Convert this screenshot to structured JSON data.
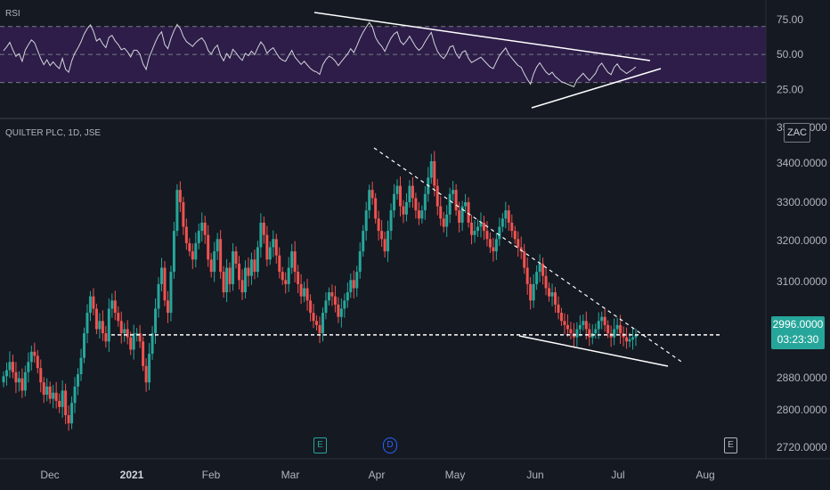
{
  "ticker_label": "QUILTER PLC, 1D, JSE",
  "currency": "ZAC",
  "last_price": "2996.0000",
  "countdown": "03:23:30",
  "rsi_panel": {
    "label": "RSI",
    "levels": [
      75.0,
      50.0,
      25.0
    ],
    "axis_labels": [
      "75.00",
      "50.00",
      "25.00"
    ],
    "band_upper": 70,
    "band_lower": 30
  },
  "price_axis_labels": [
    "3500.0000",
    "3400.0000",
    "3300.0000",
    "3200.0000",
    "3100.0000",
    "2880.0000",
    "2800.0000",
    "2720.0000"
  ],
  "time_axis_labels": [
    "Dec",
    "2021",
    "Feb",
    "Mar",
    "Apr",
    "May",
    "Jun",
    "Jul",
    "Aug"
  ],
  "event_markers": [
    "E",
    "D",
    "E"
  ],
  "colors": {
    "up": "#26a69a",
    "down": "#ef5350",
    "rsi_band": "#2d1d48",
    "background": "#151922"
  },
  "chart_data": {
    "type": "candlestick",
    "x_range": [
      "2020-11-09",
      "2021-08-20"
    ],
    "y_range": [
      2700,
      3520
    ],
    "support_level": 2996,
    "close": [
      2895,
      2910,
      2930,
      2905,
      2880,
      2890,
      2860,
      2905,
      2930,
      2955,
      2945,
      2915,
      2880,
      2850,
      2870,
      2840,
      2855,
      2835,
      2820,
      2860,
      2800,
      2780,
      2830,
      2870,
      2900,
      2940,
      3000,
      3050,
      3090,
      3060,
      3010,
      3030,
      3000,
      2980,
      3060,
      3080,
      3050,
      3030,
      3000,
      3010,
      2990,
      2960,
      3000,
      3000,
      2980,
      2920,
      2880,
      2950,
      3000,
      3060,
      3120,
      3160,
      3080,
      3050,
      3150,
      3250,
      3350,
      3320,
      3260,
      3220,
      3200,
      3180,
      3220,
      3250,
      3270,
      3240,
      3180,
      3150,
      3200,
      3230,
      3150,
      3100,
      3160,
      3120,
      3200,
      3170,
      3130,
      3100,
      3160,
      3140,
      3180,
      3150,
      3210,
      3270,
      3240,
      3180,
      3210,
      3230,
      3190,
      3150,
      3130,
      3120,
      3160,
      3200,
      3150,
      3120,
      3090,
      3110,
      3080,
      3050,
      3030,
      3020,
      3000,
      3050,
      3080,
      3100,
      3090,
      3070,
      3040,
      3060,
      3080,
      3100,
      3130,
      3110,
      3150,
      3200,
      3250,
      3300,
      3350,
      3330,
      3280,
      3250,
      3230,
      3200,
      3250,
      3300,
      3340,
      3360,
      3310,
      3290,
      3320,
      3360,
      3330,
      3300,
      3280,
      3300,
      3340,
      3380,
      3420,
      3360,
      3310,
      3280,
      3260,
      3290,
      3340,
      3350,
      3300,
      3270,
      3310,
      3320,
      3270,
      3240,
      3250,
      3260,
      3270,
      3250,
      3230,
      3210,
      3200,
      3230,
      3260,
      3280,
      3300,
      3270,
      3250,
      3230,
      3210,
      3200,
      3160,
      3120,
      3080,
      3120,
      3150,
      3170,
      3140,
      3110,
      3090,
      3100,
      3070,
      3050,
      3030,
      3020,
      3010,
      3000,
      2990,
      3010,
      3020,
      3030,
      3010,
      2990,
      3000,
      3010,
      3030,
      3040,
      3020,
      3000,
      2990,
      3010,
      3020,
      3000,
      2990,
      2980,
      2985,
      2990,
      2996
    ]
  }
}
